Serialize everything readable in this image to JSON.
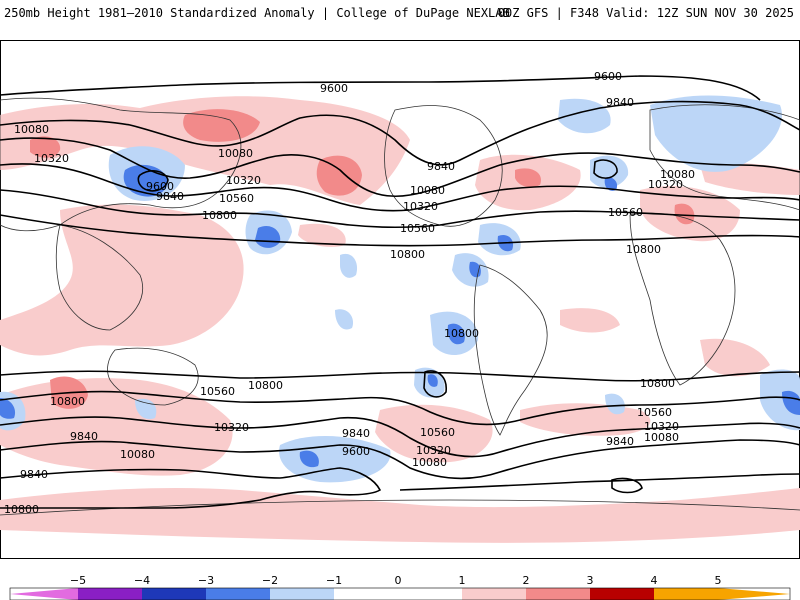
{
  "header": {
    "left": "250mb Height 1981–2010 Standardized Anomaly | College of DuPage NEXLAB",
    "right": "00Z GFS | F348 Valid: 12Z SUN NOV 30 2025"
  },
  "colors": {
    "neg5": "#e26be0",
    "neg4": "#8a1fc4",
    "neg3": "#1e38b8",
    "neg2": "#4a7de8",
    "neg1": "#bcd6f7",
    "zero": "#ffffff",
    "pos1": "#f9cccc",
    "pos2": "#f28a8a",
    "pos3": "#e24a4a",
    "pos4": "#b80000",
    "pos5": "#f7a400"
  },
  "legend": {
    "ticks": [
      "−5",
      "−4",
      "−3",
      "−2",
      "−1",
      "0",
      "1",
      "2",
      "3",
      "4",
      "5"
    ]
  },
  "contour_labels": [
    {
      "text": "9600",
      "id": "c1"
    },
    {
      "text": "9600",
      "id": "c2"
    },
    {
      "text": "9840",
      "id": "c3"
    },
    {
      "text": "10080",
      "id": "c4"
    },
    {
      "text": "10320",
      "id": "c5"
    },
    {
      "text": "9600",
      "id": "c6"
    },
    {
      "text": "9840",
      "id": "c7"
    },
    {
      "text": "10080",
      "id": "c8"
    },
    {
      "text": "10320",
      "id": "c9"
    },
    {
      "text": "10560",
      "id": "c10"
    },
    {
      "text": "10800",
      "id": "c11"
    },
    {
      "text": "9840",
      "id": "c12"
    },
    {
      "text": "10080",
      "id": "c13"
    },
    {
      "text": "10320",
      "id": "c14"
    },
    {
      "text": "10560",
      "id": "c15"
    },
    {
      "text": "10800",
      "id": "c16"
    },
    {
      "text": "10080",
      "id": "c17"
    },
    {
      "text": "10320",
      "id": "c18"
    },
    {
      "text": "10560",
      "id": "c19"
    },
    {
      "text": "10800",
      "id": "c20"
    },
    {
      "text": "10800",
      "id": "c21"
    },
    {
      "text": "10800",
      "id": "c22"
    },
    {
      "text": "10800",
      "id": "c23"
    },
    {
      "text": "10560",
      "id": "c24"
    },
    {
      "text": "10800",
      "id": "c25"
    },
    {
      "text": "10320",
      "id": "c26"
    },
    {
      "text": "10080",
      "id": "c27"
    },
    {
      "text": "9840",
      "id": "c28"
    },
    {
      "text": "9840",
      "id": "c29"
    },
    {
      "text": "9600",
      "id": "c30"
    },
    {
      "text": "10560",
      "id": "c31"
    },
    {
      "text": "10320",
      "id": "c32"
    },
    {
      "text": "10080",
      "id": "c33"
    },
    {
      "text": "10800",
      "id": "c34"
    },
    {
      "text": "10560",
      "id": "c35"
    },
    {
      "text": "10320",
      "id": "c36"
    },
    {
      "text": "10080",
      "id": "c37"
    },
    {
      "text": "9840",
      "id": "c38"
    },
    {
      "text": "9840",
      "id": "c39"
    }
  ]
}
